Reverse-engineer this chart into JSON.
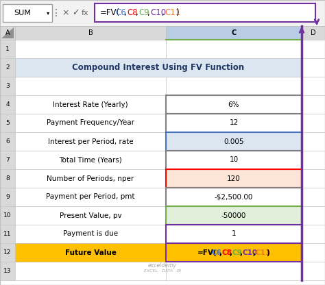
{
  "title": "Compound Interest Using FV Function",
  "name_box": "SUM",
  "rows": [
    {
      "label": "Interest Rate (Yearly)",
      "value": "6%",
      "label_bg": "#ffffff",
      "val_bg": "#ffffff",
      "val_border": "#808080",
      "label_bold": false
    },
    {
      "label": "Payment Frequency/Year",
      "value": "12",
      "label_bg": "#ffffff",
      "val_bg": "#ffffff",
      "val_border": "#808080",
      "label_bold": false
    },
    {
      "label": "Interest per Period, rate",
      "value": "0.005",
      "label_bg": "#ffffff",
      "val_bg": "#dce6f1",
      "val_border": "#4472c4",
      "label_bold": false
    },
    {
      "label": "Total Time (Years)",
      "value": "10",
      "label_bg": "#ffffff",
      "val_bg": "#ffffff",
      "val_border": "#808080",
      "label_bold": false
    },
    {
      "label": "Number of Periods, nper",
      "value": "120",
      "label_bg": "#ffffff",
      "val_bg": "#fce4d6",
      "val_border": "#ff0000",
      "label_bold": false
    },
    {
      "label": "Payment per Period, pmt",
      "value": "-$2,500.00",
      "label_bg": "#ffffff",
      "val_bg": "#ffffff",
      "val_border": "#808080",
      "label_bold": false
    },
    {
      "label": "Present Value, pv",
      "value": "-50000",
      "label_bg": "#ffffff",
      "val_bg": "#e2efda",
      "val_border": "#70ad47",
      "label_bold": false
    },
    {
      "label": "Payment is due",
      "value": "1",
      "label_bg": "#ffffff",
      "val_bg": "#ffffff",
      "val_border": "#7030a0",
      "label_bold": false
    },
    {
      "label": "Future Value",
      "value": "=FV(C6,C8,C9,C10,C11)",
      "label_bg": "#ffc000",
      "val_bg": "#ffc000",
      "val_border": "#7030a0",
      "label_bold": true
    }
  ],
  "formula_parts": [
    {
      "text": "=FV(",
      "color": "#000000"
    },
    {
      "text": "C6",
      "color": "#4472c4"
    },
    {
      "text": ",",
      "color": "#000000"
    },
    {
      "text": "C8",
      "color": "#ff0000"
    },
    {
      "text": ",",
      "color": "#000000"
    },
    {
      "text": "C9",
      "color": "#70ad47"
    },
    {
      "text": ",",
      "color": "#000000"
    },
    {
      "text": "C10",
      "color": "#7030a0"
    },
    {
      "text": ",",
      "color": "#000000"
    },
    {
      "text": "C11",
      "color": "#ed7d31"
    },
    {
      "text": ")",
      "color": "#000000"
    }
  ],
  "fv_formula_parts": [
    {
      "text": "=FV(",
      "color": "#000000"
    },
    {
      "text": "C6",
      "color": "#4472c4"
    },
    {
      "text": ",",
      "color": "#000000"
    },
    {
      "text": "C8",
      "color": "#ff0000"
    },
    {
      "text": ",",
      "color": "#000000"
    },
    {
      "text": "C9",
      "color": "#70ad47"
    },
    {
      "text": ",",
      "color": "#000000"
    },
    {
      "text": "C10",
      "color": "#7030a0"
    },
    {
      "text": ",",
      "color": "#000000"
    },
    {
      "text": "C11",
      "color": "#ed7d31"
    },
    {
      "text": ")",
      "color": "#000000"
    }
  ],
  "bg_color": "#ffffff",
  "col_header_bg": "#d9d9d9",
  "col_c_header_bg": "#b8cce4",
  "grid_color": "#c0c0c0",
  "title_color": "#1f3864",
  "title_bg": "#dce6f1",
  "purple_color": "#7030a0",
  "excel_bar_bg": "#f2f2f2",
  "row_numbers": [
    "1",
    "2",
    "3",
    "4",
    "5",
    "6",
    "7",
    "8",
    "9",
    "10",
    "11",
    "12",
    "13"
  ],
  "col_letters": [
    "A",
    "B",
    "C",
    "D"
  ],
  "watermark_line1": "exceldemy",
  "watermark_line2": "EXCEL · DATA · BI"
}
